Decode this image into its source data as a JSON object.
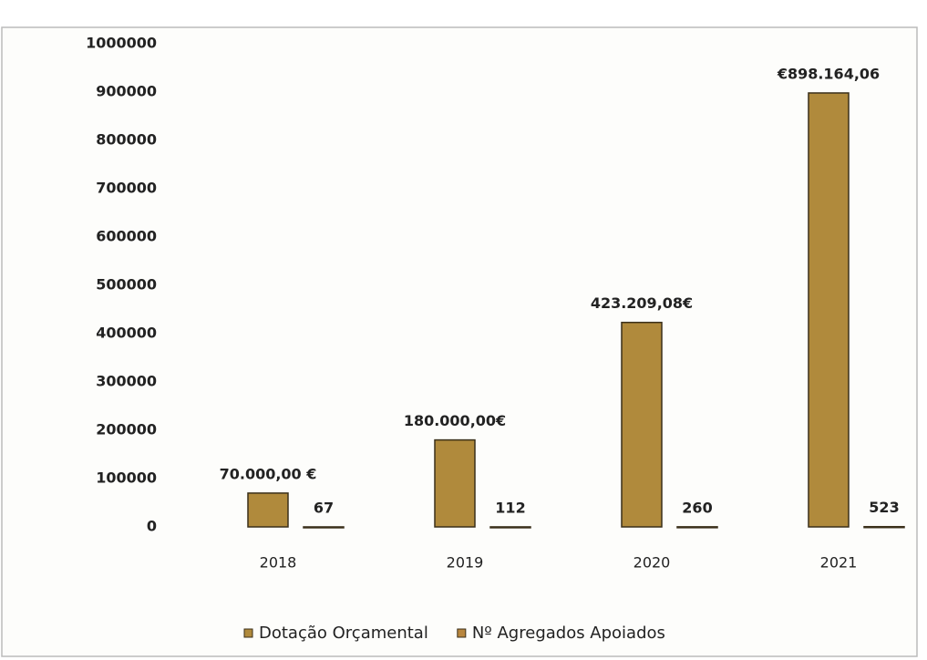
{
  "chart_data": {
    "type": "bar",
    "categories": [
      "2018",
      "2019",
      "2020",
      "2021"
    ],
    "series": [
      {
        "name": "Dotação Orçamental",
        "color": "#b08a3c",
        "values": [
          70000,
          180000,
          423209.08,
          898164.06
        ],
        "value_labels": [
          "70.000,00 €",
          "180.000,00€",
          "423.209,08€",
          "€898.164,06"
        ]
      },
      {
        "name": "Nº Agregados Apoiados",
        "color": "#b8863e",
        "values": [
          67,
          112,
          260,
          523
        ]
      }
    ],
    "ylim": [
      0,
      1000000
    ],
    "yticks": [
      0,
      100000,
      200000,
      300000,
      400000,
      500000,
      600000,
      700000,
      800000,
      900000,
      1000000
    ],
    "grid": false,
    "legend": "bottom"
  }
}
